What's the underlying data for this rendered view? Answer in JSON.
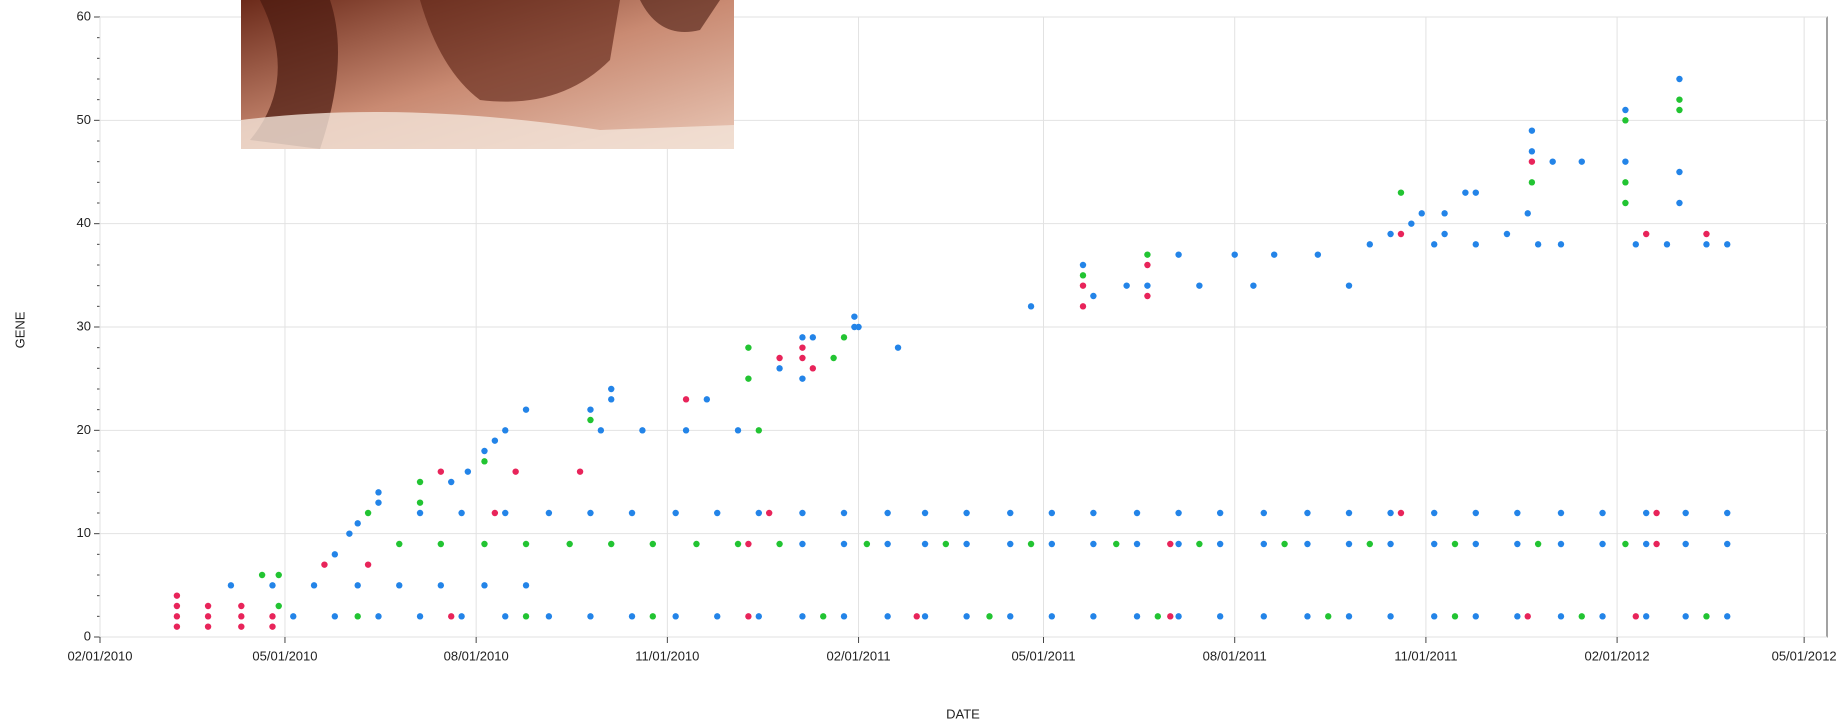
{
  "chart_data": {
    "type": "scatter",
    "x_label": "DATE",
    "y_label": "GENE",
    "xlim": [
      "2010-02-01",
      "2012-05-12"
    ],
    "xticks": [
      {
        "value": "2010-02-01",
        "label": "02/01/2010"
      },
      {
        "value": "2010-05-01",
        "label": "05/01/2010"
      },
      {
        "value": "2010-08-01",
        "label": "08/01/2010"
      },
      {
        "value": "2010-11-01",
        "label": "11/01/2010"
      },
      {
        "value": "2011-02-01",
        "label": "02/01/2011"
      },
      {
        "value": "2011-05-01",
        "label": "05/01/2011"
      },
      {
        "value": "2011-08-01",
        "label": "08/01/2011"
      },
      {
        "value": "2011-11-01",
        "label": "11/01/2011"
      },
      {
        "value": "2012-02-01",
        "label": "02/01/2012"
      },
      {
        "value": "2012-05-01",
        "label": "05/01/2012"
      }
    ],
    "ylim": [
      0,
      60
    ],
    "yticks": [
      0,
      10,
      20,
      30,
      40,
      50,
      60
    ],
    "grid": true,
    "series": [
      {
        "color": "#2384e8",
        "x": [
          "2010-05-05",
          "2010-05-25",
          "2010-06-15",
          "2010-07-05",
          "2010-07-25",
          "2010-08-15",
          "2010-09-05",
          "2010-09-25",
          "2010-10-15",
          "2010-11-05",
          "2010-11-25",
          "2010-12-15",
          "2011-01-05",
          "2011-01-25",
          "2011-02-15",
          "2011-03-05",
          "2011-03-25",
          "2011-04-15",
          "2011-05-05",
          "2011-05-25",
          "2011-06-15",
          "2011-07-05",
          "2011-07-25",
          "2011-08-15",
          "2011-09-05",
          "2011-09-25",
          "2011-10-15",
          "2011-11-05",
          "2011-11-25",
          "2011-12-15",
          "2012-01-05",
          "2012-01-25",
          "2012-02-15",
          "2012-03-05",
          "2012-03-25",
          "2010-07-05",
          "2010-07-25",
          "2010-08-15",
          "2010-09-05",
          "2010-09-25",
          "2010-10-15",
          "2010-11-05",
          "2010-11-25",
          "2010-12-15",
          "2011-01-05",
          "2011-01-25",
          "2011-02-15",
          "2011-03-05",
          "2011-03-25",
          "2011-04-15",
          "2011-05-05",
          "2011-05-25",
          "2011-06-15",
          "2011-07-05",
          "2011-07-25",
          "2011-08-15",
          "2011-09-05",
          "2011-09-25",
          "2011-10-15",
          "2011-11-05",
          "2011-11-25",
          "2011-12-15",
          "2012-01-05",
          "2012-01-25",
          "2012-02-15",
          "2012-03-05",
          "2012-03-25",
          "2011-01-05",
          "2011-01-25",
          "2011-02-15",
          "2011-03-05",
          "2011-03-25",
          "2011-04-15",
          "2011-05-05",
          "2011-05-25",
          "2011-06-15",
          "2011-07-05",
          "2011-07-25",
          "2011-08-15",
          "2011-09-05",
          "2011-09-25",
          "2011-10-15",
          "2011-11-05",
          "2011-11-25",
          "2011-12-15",
          "2012-01-05",
          "2012-01-25",
          "2012-02-15",
          "2012-03-05",
          "2012-03-25",
          "2010-04-05",
          "2010-04-25",
          "2010-05-15",
          "2010-06-05",
          "2010-06-25",
          "2010-07-15",
          "2010-08-05",
          "2010-08-25",
          "2010-05-25",
          "2010-06-01",
          "2010-06-05",
          "2010-06-15",
          "2010-06-15",
          "2010-07-20",
          "2010-07-28",
          "2010-08-05",
          "2010-08-10",
          "2010-08-15",
          "2010-08-25",
          "2010-09-25",
          "2010-10-05",
          "2010-10-05",
          "2010-11-20",
          "2010-09-30",
          "2010-10-20",
          "2010-11-10",
          "2010-12-05",
          "2010-12-25",
          "2011-01-05",
          "2011-01-10",
          "2011-01-05",
          "2011-01-30",
          "2011-01-30",
          "2011-02-01",
          "2011-02-20",
          "2011-04-25",
          "2011-05-20",
          "2011-05-25",
          "2011-06-10",
          "2011-06-20",
          "2011-07-05",
          "2011-07-15",
          "2011-08-01",
          "2011-08-10",
          "2011-08-20",
          "2011-09-10",
          "2011-09-25",
          "2011-10-05",
          "2011-10-15",
          "2011-10-25",
          "2011-10-30",
          "2011-11-10",
          "2011-11-20",
          "2011-11-05",
          "2011-11-25",
          "2011-12-10",
          "2011-12-25",
          "2012-01-05",
          "2011-12-22",
          "2011-12-22",
          "2012-01-01",
          "2012-01-15",
          "2012-02-05",
          "2012-02-05",
          "2012-02-10",
          "2012-02-25",
          "2012-03-02",
          "2012-03-02",
          "2012-03-02",
          "2012-03-15",
          "2012-03-25",
          "2011-12-20",
          "2011-11-10",
          "2011-11-25"
        ],
        "values": [
          2,
          2,
          2,
          2,
          2,
          2,
          2,
          2,
          2,
          2,
          2,
          2,
          2,
          2,
          2,
          2,
          2,
          2,
          2,
          2,
          2,
          2,
          2,
          2,
          2,
          2,
          2,
          2,
          2,
          2,
          2,
          2,
          2,
          2,
          2,
          12,
          12,
          12,
          12,
          12,
          12,
          12,
          12,
          12,
          12,
          12,
          12,
          12,
          12,
          12,
          12,
          12,
          12,
          12,
          12,
          12,
          12,
          12,
          12,
          12,
          12,
          12,
          12,
          12,
          12,
          12,
          12,
          9,
          9,
          9,
          9,
          9,
          9,
          9,
          9,
          9,
          9,
          9,
          9,
          9,
          9,
          9,
          9,
          9,
          9,
          9,
          9,
          9,
          9,
          9,
          5,
          5,
          5,
          5,
          5,
          5,
          5,
          5,
          8,
          10,
          11,
          13,
          14,
          15,
          16,
          18,
          19,
          20,
          22,
          22,
          24,
          23,
          23,
          20,
          20,
          20,
          20,
          26,
          29,
          29,
          25,
          31,
          30,
          30,
          28,
          32,
          36,
          33,
          34,
          34,
          37,
          34,
          37,
          34,
          37,
          37,
          34,
          38,
          39,
          40,
          41,
          41,
          43,
          38,
          38,
          39,
          38,
          38,
          49,
          47,
          46,
          46,
          51,
          46,
          38,
          38,
          54,
          45,
          42,
          38,
          38,
          41,
          39,
          43
        ]
      },
      {
        "color": "#e8245a",
        "x": [
          "2010-03-10",
          "2010-03-10",
          "2010-03-10",
          "2010-03-10",
          "2010-03-25",
          "2010-03-25",
          "2010-03-25",
          "2010-04-10",
          "2010-04-10",
          "2010-04-10",
          "2010-04-25",
          "2010-04-25",
          "2010-05-20",
          "2010-06-10",
          "2010-07-15",
          "2010-08-20",
          "2010-09-20",
          "2010-11-10",
          "2010-12-25",
          "2011-01-05",
          "2011-01-05",
          "2011-01-10",
          "2010-07-20",
          "2010-12-10",
          "2011-03-01",
          "2011-07-01",
          "2011-12-20",
          "2012-02-10",
          "2010-12-10",
          "2011-07-01",
          "2012-02-20",
          "2010-08-10",
          "2010-12-20",
          "2011-10-20",
          "2012-02-20",
          "2011-05-20",
          "2011-05-20",
          "2011-06-20",
          "2011-06-20",
          "2011-10-20",
          "2011-12-22",
          "2012-02-15",
          "2012-03-15"
        ],
        "values": [
          1,
          2,
          3,
          4,
          1,
          2,
          3,
          1,
          2,
          3,
          1,
          2,
          7,
          7,
          16,
          16,
          16,
          23,
          27,
          28,
          27,
          26,
          2,
          2,
          2,
          2,
          2,
          2,
          9,
          9,
          9,
          12,
          12,
          12,
          12,
          34,
          32,
          36,
          33,
          39,
          46,
          39,
          39
        ]
      },
      {
        "color": "#22c432",
        "x": [
          "2010-04-20",
          "2010-04-28",
          "2010-04-28",
          "2010-06-10",
          "2010-07-05",
          "2010-07-05",
          "2010-08-05",
          "2010-09-25",
          "2010-12-15",
          "2010-12-10",
          "2010-12-10",
          "2011-01-25",
          "2011-01-20",
          "2011-05-20",
          "2011-06-20",
          "2011-10-20",
          "2011-12-22",
          "2012-02-05",
          "2012-02-05",
          "2012-02-05",
          "2012-03-02",
          "2012-03-02",
          "2010-06-25",
          "2010-07-15",
          "2010-08-05",
          "2010-08-25",
          "2010-09-15",
          "2010-10-05",
          "2010-10-25",
          "2010-11-15",
          "2010-12-05",
          "2010-12-25",
          "2011-02-05",
          "2011-03-15",
          "2011-04-25",
          "2011-06-05",
          "2011-07-15",
          "2011-08-25",
          "2011-10-05",
          "2011-11-15",
          "2011-12-25",
          "2012-02-05",
          "2010-06-05",
          "2010-08-25",
          "2010-10-25",
          "2011-01-15",
          "2011-04-05",
          "2011-06-25",
          "2011-09-15",
          "2011-11-15",
          "2012-01-15",
          "2012-03-15"
        ],
        "values": [
          6,
          6,
          3,
          12,
          15,
          13,
          17,
          21,
          20,
          28,
          25,
          29,
          27,
          35,
          37,
          43,
          44,
          50,
          44,
          42,
          52,
          51,
          9,
          9,
          9,
          9,
          9,
          9,
          9,
          9,
          9,
          9,
          9,
          9,
          9,
          9,
          9,
          9,
          9,
          9,
          9,
          9,
          2,
          2,
          2,
          2,
          2,
          2,
          2,
          2,
          2,
          2
        ]
      }
    ]
  }
}
